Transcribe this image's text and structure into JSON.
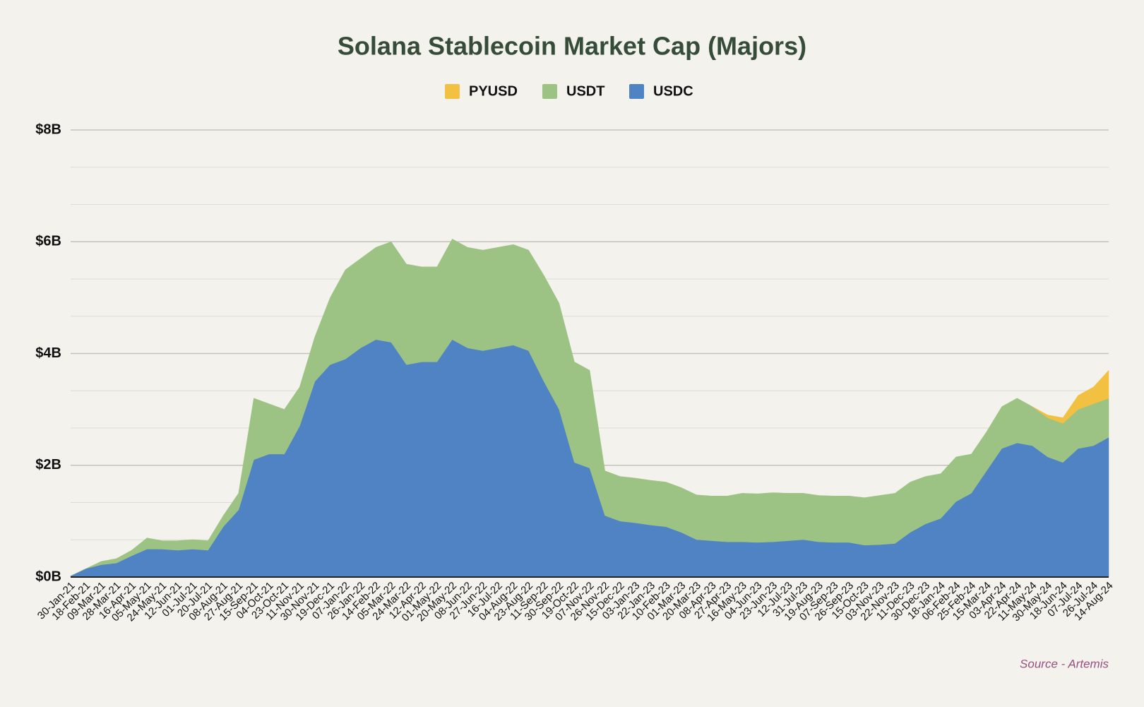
{
  "chart_data": {
    "type": "stacked_area",
    "title": "Solana Stablecoin Market Cap (Majors)",
    "source": "Source - Artemis",
    "categories": [
      "30-Jan-21",
      "18-Feb-21",
      "09-Mar-21",
      "28-Mar-21",
      "16-Apr-21",
      "05-May-21",
      "24-May-21",
      "12-Jun-21",
      "01-Jul-21",
      "20-Jul-21",
      "08-Aug-21",
      "27-Aug-21",
      "15-Sep-21",
      "04-Oct-21",
      "23-Oct-21",
      "11-Nov-21",
      "30-Nov-21",
      "19-Dec-21",
      "07-Jan-22",
      "26-Jan-22",
      "14-Feb-22",
      "05-Mar-22",
      "24-Mar-22",
      "12-Apr-22",
      "01-May-22",
      "20-May-22",
      "08-Jun-22",
      "27-Jun-22",
      "16-Jul-22",
      "04-Aug-22",
      "23-Aug-22",
      "11-Sep-22",
      "30-Sep-22",
      "19-Oct-22",
      "07-Nov-22",
      "26-Nov-22",
      "15-Dec-22",
      "03-Jan-23",
      "22-Jan-23",
      "10-Feb-23",
      "01-Mar-23",
      "20-Mar-23",
      "08-Apr-23",
      "27-Apr-23",
      "16-May-23",
      "04-Jun-23",
      "23-Jun-23",
      "12-Jul-23",
      "31-Jul-23",
      "19-Aug-23",
      "07-Sep-23",
      "26-Sep-23",
      "15-Oct-23",
      "03-Nov-23",
      "22-Nov-23",
      "11-Dec-23",
      "30-Dec-23",
      "18-Jan-24",
      "06-Feb-24",
      "25-Feb-24",
      "15-Mar-24",
      "03-Apr-24",
      "22-Apr-24",
      "11-May-24",
      "30-May-24",
      "18-Jun-24",
      "07-Jul-24",
      "26-Jul-24",
      "14-Aug-24"
    ],
    "series": [
      {
        "name": "PYUSD",
        "color": "#f2c141",
        "values": [
          null,
          null,
          null,
          null,
          null,
          null,
          null,
          null,
          null,
          null,
          null,
          null,
          null,
          null,
          null,
          null,
          null,
          null,
          null,
          null,
          null,
          null,
          null,
          null,
          null,
          null,
          null,
          null,
          null,
          null,
          null,
          null,
          null,
          null,
          null,
          null,
          null,
          null,
          null,
          null,
          null,
          null,
          null,
          null,
          null,
          null,
          null,
          null,
          null,
          null,
          null,
          null,
          null,
          null,
          null,
          null,
          null,
          null,
          null,
          null,
          null,
          null,
          null,
          0,
          0.05,
          0.1,
          0.25,
          0.3,
          0.5
        ]
      },
      {
        "name": "USDT",
        "color": "#9dc384",
        "values": [
          0,
          0,
          0.06,
          0.08,
          0.1,
          0.2,
          0.15,
          0.17,
          0.17,
          0.17,
          0.2,
          0.3,
          1.1,
          0.9,
          0.8,
          0.7,
          0.8,
          1.2,
          1.6,
          1.6,
          1.65,
          1.8,
          1.8,
          1.7,
          1.7,
          1.8,
          1.8,
          1.8,
          1.8,
          1.8,
          1.8,
          1.9,
          1.9,
          1.8,
          1.75,
          0.8,
          0.8,
          0.8,
          0.8,
          0.8,
          0.8,
          0.8,
          0.8,
          0.82,
          0.87,
          0.87,
          0.88,
          0.85,
          0.83,
          0.83,
          0.83,
          0.83,
          0.85,
          0.88,
          0.9,
          0.9,
          0.85,
          0.8,
          0.8,
          0.7,
          0.7,
          0.75,
          0.8,
          0.7,
          0.7,
          0.7,
          0.7,
          0.75,
          0.7
        ]
      },
      {
        "name": "USDC",
        "color": "#4f83c4",
        "values": [
          0.02,
          0.15,
          0.22,
          0.25,
          0.38,
          0.5,
          0.5,
          0.48,
          0.5,
          0.48,
          0.9,
          1.2,
          2.1,
          2.2,
          2.2,
          2.7,
          3.5,
          3.8,
          3.9,
          4.1,
          4.25,
          4.2,
          3.8,
          3.85,
          3.85,
          4.25,
          4.1,
          4.05,
          4.1,
          4.15,
          4.05,
          3.5,
          3.0,
          2.05,
          1.95,
          1.1,
          1.0,
          0.97,
          0.93,
          0.9,
          0.8,
          0.67,
          0.65,
          0.63,
          0.63,
          0.62,
          0.63,
          0.65,
          0.67,
          0.63,
          0.62,
          0.62,
          0.57,
          0.58,
          0.6,
          0.8,
          0.95,
          1.05,
          1.35,
          1.5,
          1.9,
          2.3,
          2.4,
          2.35,
          2.15,
          2.05,
          2.3,
          2.35,
          2.5
        ]
      }
    ],
    "stack_order": [
      "USDC",
      "USDT",
      "PYUSD"
    ],
    "ylim": [
      0,
      8
    ],
    "yticks": [
      {
        "value": 0,
        "label": "$0B"
      },
      {
        "value": 2,
        "label": "$2B"
      },
      {
        "value": 4,
        "label": "$4B"
      },
      {
        "value": 6,
        "label": "$6B"
      },
      {
        "value": 8,
        "label": "$8B"
      }
    ],
    "grid": true,
    "minor_grid_divisions": 3,
    "legend": "top"
  }
}
